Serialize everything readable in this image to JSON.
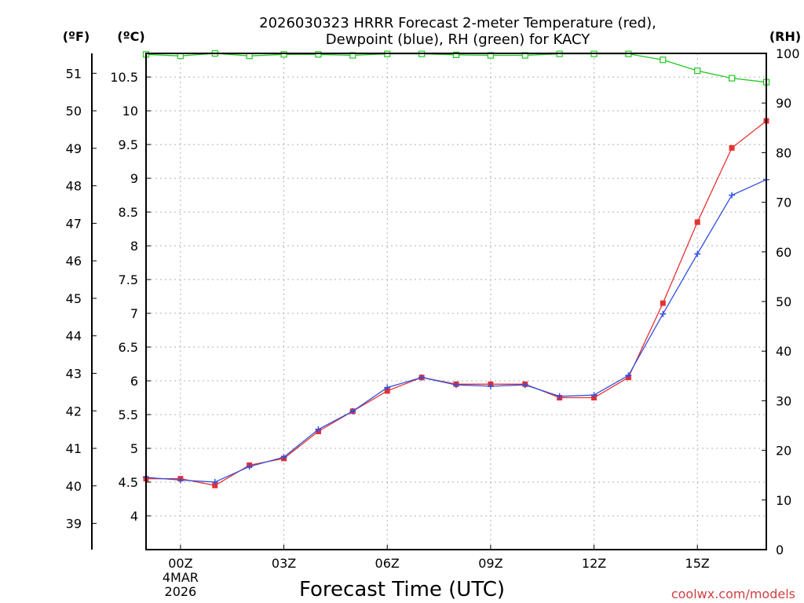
{
  "chart_data": {
    "type": "line",
    "title_line1": "2026030323 HRRR Forecast 2-meter Temperature (red),",
    "title_line2": "Dewpoint (blue), RH (green) for KACY",
    "xlabel": "Forecast Time (UTC)",
    "credit": "coolwx.com/models",
    "unit_f": "(ºF)",
    "unit_c": "(ºC)",
    "unit_rh": "(RH)",
    "x_ticks": [
      {
        "hour": 0,
        "label": "00Z",
        "sub1": "4MAR",
        "sub2": "2026"
      },
      {
        "hour": 3,
        "label": "03Z"
      },
      {
        "hour": 6,
        "label": "06Z"
      },
      {
        "hour": 9,
        "label": "09Z"
      },
      {
        "hour": 12,
        "label": "12Z"
      },
      {
        "hour": 15,
        "label": "15Z"
      }
    ],
    "xlim": [
      -1,
      17
    ],
    "ylim_c": [
      3.5,
      10.85
    ],
    "ylim_rh": [
      0,
      100
    ],
    "c_ticks": [
      "4",
      "4.5",
      "5",
      "5.5",
      "6",
      "6.5",
      "7",
      "7.5",
      "8",
      "8.5",
      "9",
      "9.5",
      "10",
      "10.5"
    ],
    "f_ticks": [
      "39",
      "40",
      "41",
      "42",
      "43",
      "44",
      "45",
      "46",
      "47",
      "48",
      "49",
      "50",
      "51"
    ],
    "rh_ticks": [
      "0",
      "10",
      "20",
      "30",
      "40",
      "50",
      "60",
      "70",
      "80",
      "90",
      "100"
    ],
    "x": [
      -1,
      0,
      1,
      2,
      3,
      4,
      5,
      6,
      7,
      8,
      9,
      10,
      11,
      12,
      13,
      14,
      15,
      16,
      17
    ],
    "series": [
      {
        "name": "Temperature",
        "color": "#e83030",
        "marker": "square",
        "values": [
          4.55,
          4.55,
          4.45,
          4.75,
          4.85,
          5.25,
          5.55,
          5.85,
          6.05,
          5.95,
          5.95,
          5.95,
          5.75,
          5.75,
          6.05,
          7.15,
          8.35,
          9.45,
          9.85
        ]
      },
      {
        "name": "Dewpoint",
        "color": "#3050e0",
        "marker": "plus",
        "values": [
          4.57,
          4.53,
          4.5,
          4.73,
          4.87,
          5.28,
          5.55,
          5.9,
          6.05,
          5.94,
          5.92,
          5.94,
          5.77,
          5.79,
          6.08,
          6.99,
          7.88,
          8.75,
          8.98
        ]
      },
      {
        "name": "RH",
        "color": "#20c820",
        "marker": "open-square",
        "axis": "rh",
        "values": [
          99.8,
          99.5,
          100,
          99.5,
          99.8,
          99.8,
          99.6,
          99.9,
          99.9,
          99.7,
          99.6,
          99.6,
          99.9,
          99.9,
          99.9,
          98.7,
          96.5,
          95.0,
          94.2
        ]
      }
    ]
  }
}
